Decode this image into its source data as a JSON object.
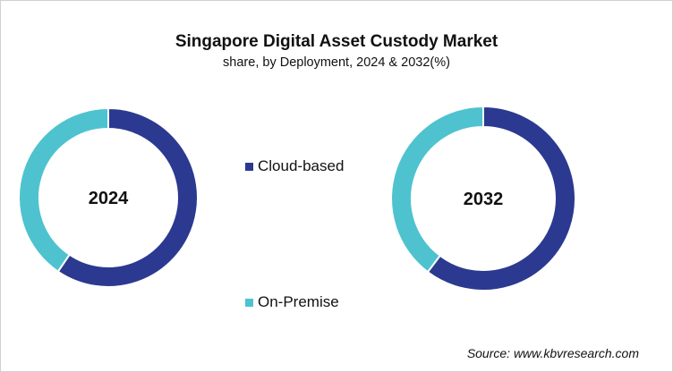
{
  "chart_data": {
    "type": "donut",
    "title": "Singapore Digital Asset Custody Market",
    "subtitle": "share, by Deployment, 2024 & 2032(%)",
    "legend_placement": "center",
    "categories": [
      "Cloud-based",
      "On-Premise"
    ],
    "colors": {
      "Cloud-based": "#2b3990",
      "On-Premise": "#4ec3cf"
    },
    "charts": [
      {
        "label": "2024",
        "values": [
          59.5,
          40.5
        ]
      },
      {
        "label": "2032",
        "values": [
          60.3,
          39.7
        ]
      }
    ]
  },
  "source": "Source: www.kbvresearch.com"
}
